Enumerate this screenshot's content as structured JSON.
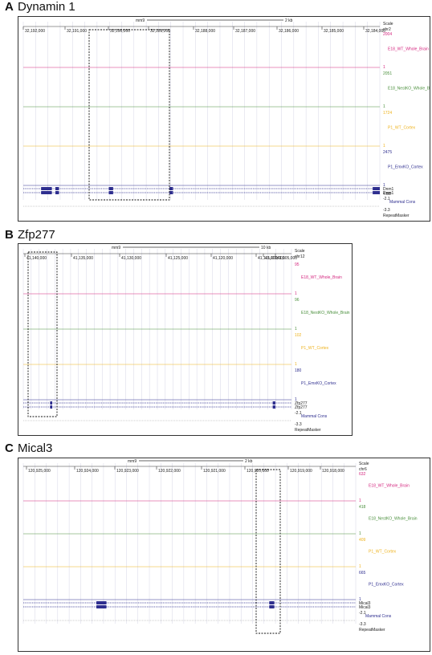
{
  "panels": [
    {
      "label": "A",
      "title": "Dynamin 1",
      "assembly": "mm9",
      "scalebar": "2 kb",
      "scale_label": "Scale",
      "chrom": "chr2",
      "coords": [
        "32,192,000",
        "32,191,000",
        "32,190,000",
        "32,189,000",
        "32,188,000",
        "32,187,000",
        "32,186,000",
        "32,185,000",
        "32,184,000"
      ],
      "tracks": [
        {
          "name": "E18_WT_Whole_Brain",
          "color": "#d4267f",
          "max": "2004",
          "min": "1",
          "profile": [
            0,
            0,
            0,
            0,
            4,
            0,
            0,
            0,
            2,
            0,
            0,
            0,
            1,
            0,
            0,
            0,
            0,
            0,
            0,
            0,
            0,
            0,
            0,
            0,
            0,
            0,
            0,
            0,
            0,
            0,
            0,
            0,
            0,
            0,
            0,
            0,
            0,
            0,
            0,
            0,
            0,
            0,
            0,
            0,
            0,
            0,
            0,
            0,
            0,
            0,
            0,
            0,
            0,
            0,
            0,
            0,
            0,
            0,
            0,
            0,
            0,
            0,
            0,
            0,
            0,
            0,
            0,
            0,
            0,
            0,
            0,
            0,
            0,
            0,
            0,
            0,
            0,
            0,
            0,
            0,
            0,
            0,
            0,
            0,
            0,
            0,
            0,
            0,
            0,
            0,
            0,
            0,
            0,
            0,
            0,
            0,
            0,
            0,
            0,
            0,
            0,
            0,
            0,
            0,
            0,
            0,
            0,
            0,
            0,
            0,
            0,
            0,
            0,
            0,
            0,
            0,
            0,
            0,
            0,
            0,
            0,
            0,
            0,
            0,
            0,
            0,
            0,
            0,
            0,
            0,
            0,
            0,
            0,
            0,
            0,
            0,
            0,
            0,
            0,
            0,
            0,
            0,
            0,
            0,
            0,
            0,
            0,
            0,
            0,
            0,
            0,
            0,
            0,
            0,
            0,
            0,
            0,
            0,
            0,
            0,
            0,
            0,
            0,
            0,
            0,
            0,
            0,
            0,
            0,
            0
          ]
        },
        {
          "name": "E18_NestKO_Whole_Brain",
          "color": "#4a8f3c",
          "max": "2051",
          "min": "1"
        },
        {
          "name": "P1_WT_Cortex",
          "color": "#eeb21c",
          "max": "1724",
          "min": "1"
        },
        {
          "name": "P1_EmxKO_Cortex",
          "color": "#2e2e8f",
          "max": "2475",
          "min": "1"
        }
      ],
      "genes": [
        "Dnm1",
        "Dnm1"
      ],
      "cons_label": "Mammal Cons",
      "cons_max": "4.88",
      "cons_min": "-3.3",
      "cons_min2": "-2.1",
      "rm_label": "RepeatMasker"
    },
    {
      "label": "B",
      "title": "Zfp277",
      "assembly": "mm9",
      "scalebar": "10 kb",
      "scale_label": "Scale",
      "chrom": "chr12",
      "coords": [
        "41,140,000",
        "41,135,000",
        "41,130,000",
        "41,125,000",
        "41,120,000",
        "41,115,000",
        "41,110,000",
        "41,105,000"
      ],
      "tracks": [
        {
          "name": "E18_WT_Whole_Brain",
          "color": "#d4267f",
          "max": "95",
          "min": "1"
        },
        {
          "name": "E18_NestKO_Whole_Brain",
          "color": "#4a8f3c",
          "max": "96",
          "min": "1"
        },
        {
          "name": "P1_WT_Cortex",
          "color": "#eeb21c",
          "max": "102",
          "min": "1"
        },
        {
          "name": "P1_EmxKO_Cortex",
          "color": "#2e2e8f",
          "max": "180",
          "min": "1"
        }
      ],
      "genes": [
        "Zfp277",
        "Zfp277"
      ],
      "cons_label": "Mammal Cons",
      "cons_max": "",
      "cons_min": "-3.3",
      "cons_min2": "-2.1",
      "rm_label": "RepeatMasker"
    },
    {
      "label": "C",
      "title": "Mical3",
      "assembly": "mm9",
      "scalebar": "2 kb",
      "scale_label": "Scale",
      "chrom": "chr6",
      "coords": [
        "120,925,000",
        "120,924,000",
        "120,923,000",
        "120,922,000",
        "120,921,000",
        "120,920,000",
        "120,919,000",
        "120,918,000"
      ],
      "tracks": [
        {
          "name": "E18_WT_Whole_Brain",
          "color": "#d4267f",
          "max": "632",
          "min": "1"
        },
        {
          "name": "E18_NestKO_Whole_Brain",
          "color": "#4a8f3c",
          "max": "418",
          "min": "1"
        },
        {
          "name": "P1_WT_Cortex",
          "color": "#eeb21c",
          "max": "409",
          "min": "1"
        },
        {
          "name": "P1_EmxKO_Cortex",
          "color": "#2e2e8f",
          "max": "665",
          "min": "1"
        }
      ],
      "genes": [
        "Mical3",
        "Mical3"
      ],
      "cons_label": "Mammal Cons",
      "cons_max": "",
      "cons_min": "-3.3",
      "cons_min2": "-2.1",
      "rm_label": "RepeatMasker"
    }
  ]
}
